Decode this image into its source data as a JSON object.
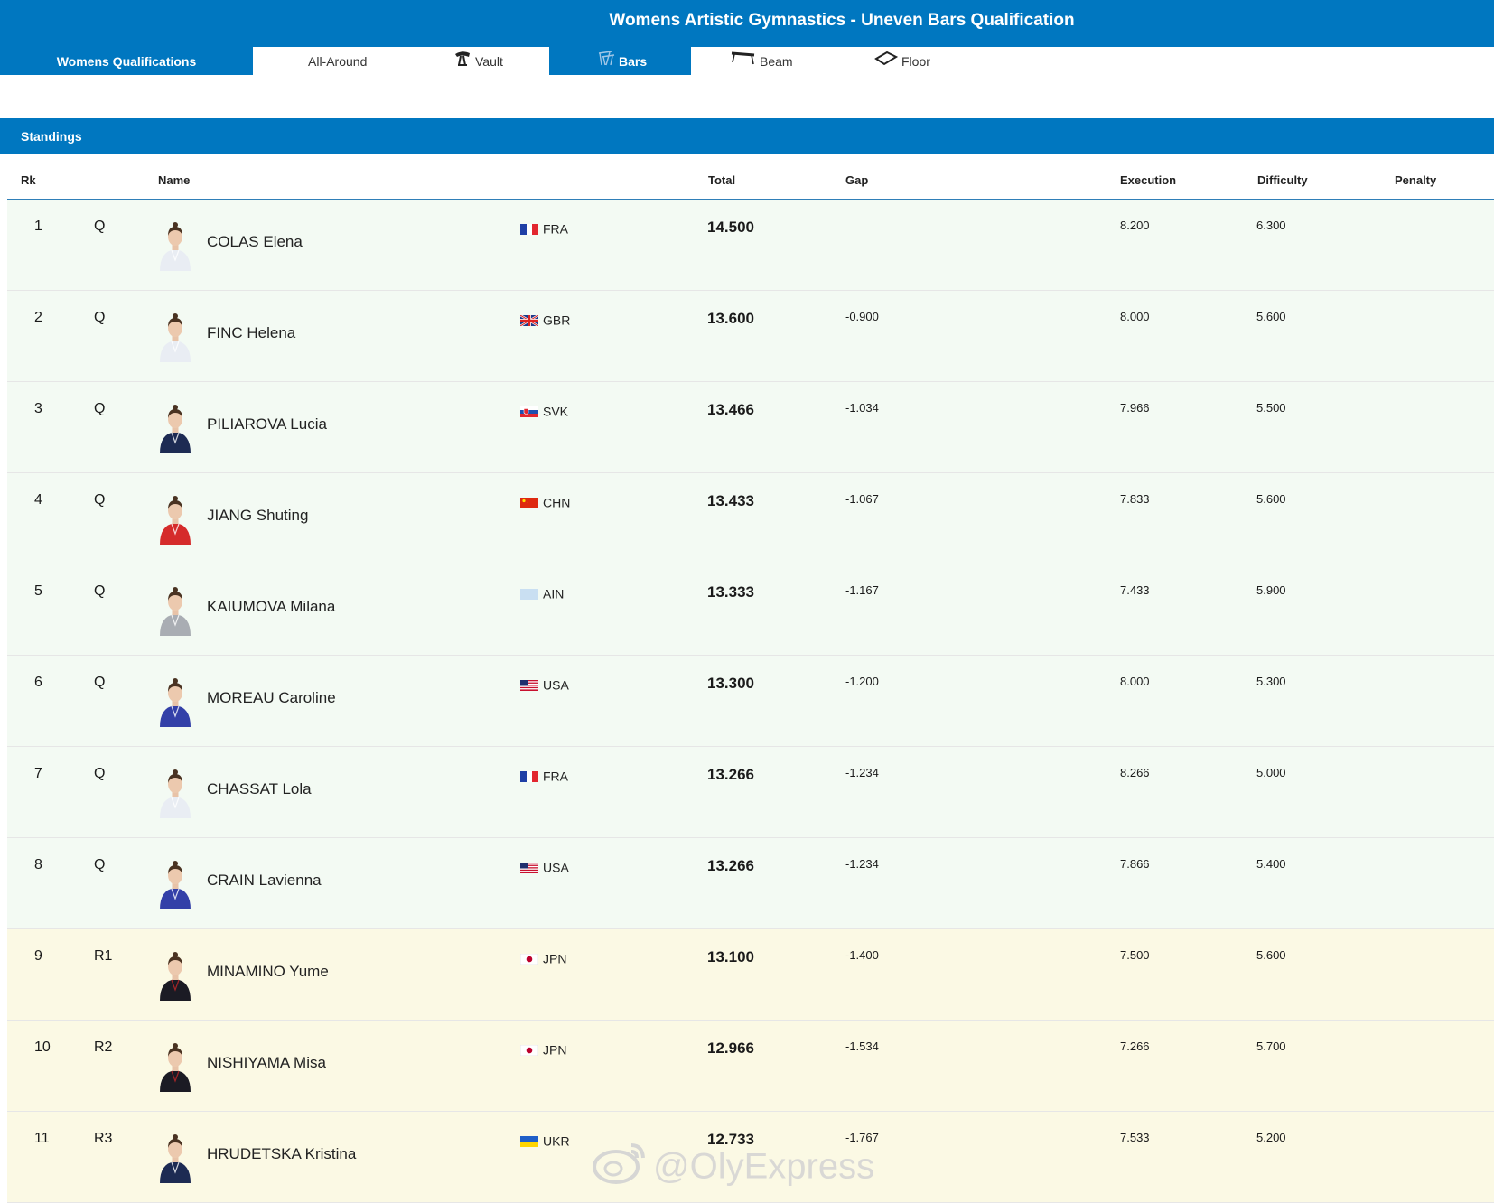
{
  "header": {
    "title": "Womens Artistic Gymnastics - Uneven Bars Qualification"
  },
  "tabs": [
    {
      "label": "Womens Qualifications",
      "icon": ""
    },
    {
      "label": "All-Around",
      "icon": ""
    },
    {
      "label": "Vault",
      "icon": "vault-icon"
    },
    {
      "label": "Bars",
      "icon": "bars-icon"
    },
    {
      "label": "Beam",
      "icon": "beam-icon"
    },
    {
      "label": "Floor",
      "icon": "floor-icon"
    }
  ],
  "standings": {
    "label": "Standings"
  },
  "columns": {
    "rk": "Rk",
    "name": "Name",
    "total": "Total",
    "gap": "Gap",
    "execution": "Execution",
    "difficulty": "Difficulty",
    "penalty": "Penalty"
  },
  "colors": {
    "accent": "#0077c0",
    "qualified_row": "#f3faf3",
    "reserve_row": "#fbf9e4",
    "suit_white": "#e9edf3",
    "suit_navy": "#1d2b53",
    "suit_red": "#d52b2b",
    "suit_grey": "#a9adb3",
    "suit_blue": "#3340a8",
    "suit_dark": "#1b1b24"
  },
  "rows": [
    {
      "rank": "1",
      "q": "Q",
      "name": "COLAS Elena",
      "noc": "FRA",
      "total": "14.500",
      "gap": "",
      "execution": "8.200",
      "difficulty": "6.300",
      "penalty": "",
      "suit": "white",
      "status": "qualified"
    },
    {
      "rank": "2",
      "q": "Q",
      "name": "FINC Helena",
      "noc": "GBR",
      "total": "13.600",
      "gap": "-0.900",
      "execution": "8.000",
      "difficulty": "5.600",
      "penalty": "",
      "suit": "white",
      "status": "qualified"
    },
    {
      "rank": "3",
      "q": "Q",
      "name": "PILIAROVA Lucia",
      "noc": "SVK",
      "total": "13.466",
      "gap": "-1.034",
      "execution": "7.966",
      "difficulty": "5.500",
      "penalty": "",
      "suit": "navy",
      "status": "qualified"
    },
    {
      "rank": "4",
      "q": "Q",
      "name": "JIANG Shuting",
      "noc": "CHN",
      "total": "13.433",
      "gap": "-1.067",
      "execution": "7.833",
      "difficulty": "5.600",
      "penalty": "",
      "suit": "red",
      "status": "qualified"
    },
    {
      "rank": "5",
      "q": "Q",
      "name": "KAIUMOVA Milana",
      "noc": "AIN",
      "total": "13.333",
      "gap": "-1.167",
      "execution": "7.433",
      "difficulty": "5.900",
      "penalty": "",
      "suit": "grey",
      "status": "qualified"
    },
    {
      "rank": "6",
      "q": "Q",
      "name": "MOREAU Caroline",
      "noc": "USA",
      "total": "13.300",
      "gap": "-1.200",
      "execution": "8.000",
      "difficulty": "5.300",
      "penalty": "",
      "suit": "blue",
      "status": "qualified"
    },
    {
      "rank": "7",
      "q": "Q",
      "name": "CHASSAT Lola",
      "noc": "FRA",
      "total": "13.266",
      "gap": "-1.234",
      "execution": "8.266",
      "difficulty": "5.000",
      "penalty": "",
      "suit": "white",
      "status": "qualified"
    },
    {
      "rank": "8",
      "q": "Q",
      "name": "CRAIN Lavienna",
      "noc": "USA",
      "total": "13.266",
      "gap": "-1.234",
      "execution": "7.866",
      "difficulty": "5.400",
      "penalty": "",
      "suit": "blue",
      "status": "qualified"
    },
    {
      "rank": "9",
      "q": "R1",
      "name": "MINAMINO Yume",
      "noc": "JPN",
      "total": "13.100",
      "gap": "-1.400",
      "execution": "7.500",
      "difficulty": "5.600",
      "penalty": "",
      "suit": "dark",
      "status": "reserve"
    },
    {
      "rank": "10",
      "q": "R2",
      "name": "NISHIYAMA Misa",
      "noc": "JPN",
      "total": "12.966",
      "gap": "-1.534",
      "execution": "7.266",
      "difficulty": "5.700",
      "penalty": "",
      "suit": "dark",
      "status": "reserve"
    },
    {
      "rank": "11",
      "q": "R3",
      "name": "HRUDETSKA Kristina",
      "noc": "UKR",
      "total": "12.733",
      "gap": "-1.767",
      "execution": "7.533",
      "difficulty": "5.200",
      "penalty": "",
      "suit": "navy",
      "status": "reserve"
    }
  ],
  "watermark": {
    "text": "@OlyExpress",
    "icon": "weibo-icon"
  }
}
